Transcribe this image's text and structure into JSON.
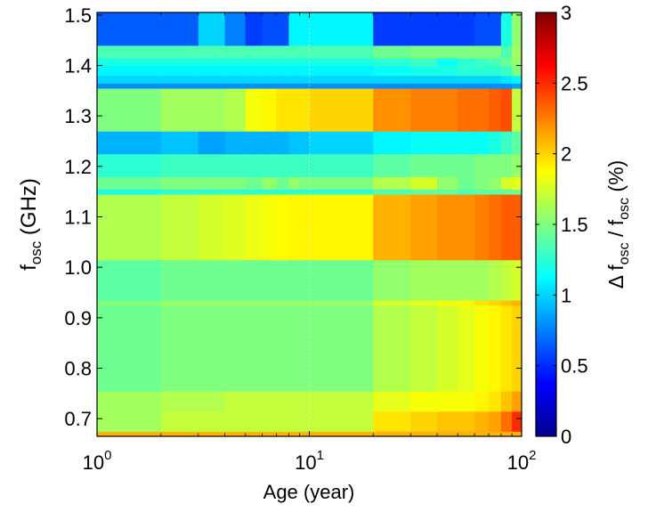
{
  "chart_data": {
    "type": "heatmap",
    "title": "",
    "xlabel": "Age (year)",
    "ylabel_main": "f",
    "ylabel_sub": "osc",
    "ylabel_unit": " (GHz)",
    "xscale": "log",
    "xlim": [
      1,
      100
    ],
    "ylim": [
      0.665,
      1.505
    ],
    "x_ticks": [
      {
        "value": 1,
        "base": "10",
        "exp": "0"
      },
      {
        "value": 10,
        "base": "10",
        "exp": "1"
      },
      {
        "value": 100,
        "base": "10",
        "exp": "2"
      }
    ],
    "y_ticks": [
      {
        "value": 0.7,
        "label": "0.7"
      },
      {
        "value": 0.8,
        "label": "0.8"
      },
      {
        "value": 0.9,
        "label": "0.9"
      },
      {
        "value": 1.0,
        "label": "1.0"
      },
      {
        "value": 1.1,
        "label": "1.1"
      },
      {
        "value": 1.2,
        "label": "1.2"
      },
      {
        "value": 1.3,
        "label": "1.3"
      },
      {
        "value": 1.4,
        "label": "1.4"
      },
      {
        "value": 1.5,
        "label": "1.5"
      }
    ],
    "colorbar": {
      "label_prefix": "Δ f",
      "label_sub1": "osc",
      "label_mid": " / f",
      "label_sub2": "osc",
      "label_unit": " (%)",
      "range": [
        0,
        3
      ],
      "colormap": "jet",
      "ticks": [
        {
          "value": 0,
          "label": "0"
        },
        {
          "value": 0.5,
          "label": "0.5"
        },
        {
          "value": 1,
          "label": "1"
        },
        {
          "value": 1.5,
          "label": "1.5"
        },
        {
          "value": 2,
          "label": "2"
        },
        {
          "value": 2.5,
          "label": "2.5"
        },
        {
          "value": 3,
          "label": "3"
        }
      ]
    },
    "x_edges": [
      1,
      2,
      3,
      4,
      5,
      6,
      7,
      8,
      9,
      10,
      20,
      30,
      40,
      50,
      60,
      70,
      80,
      90,
      100
    ],
    "rows": [
      {
        "y0": 0.665,
        "y1": 0.675,
        "values": [
          2.1,
          2.1,
          2.1,
          2.1,
          2.1,
          2.1,
          2.1,
          2.1,
          2.1,
          2.1,
          2.1,
          2.1,
          2.1,
          2.1,
          2.1,
          2.1,
          2.1,
          2.1
        ]
      },
      {
        "y0": 0.675,
        "y1": 0.715,
        "values": [
          1.6,
          1.7,
          1.7,
          1.7,
          1.7,
          1.7,
          1.7,
          1.7,
          1.7,
          1.7,
          1.95,
          2.0,
          2.05,
          2.05,
          2.1,
          2.15,
          2.3,
          2.5
        ]
      },
      {
        "y0": 0.715,
        "y1": 0.755,
        "values": [
          1.6,
          1.65,
          1.65,
          1.7,
          1.7,
          1.7,
          1.7,
          1.7,
          1.7,
          1.7,
          1.8,
          1.85,
          1.85,
          1.85,
          1.9,
          1.95,
          2.05,
          2.15
        ]
      },
      {
        "y0": 0.755,
        "y1": 0.925,
        "values": [
          1.45,
          1.5,
          1.5,
          1.5,
          1.5,
          1.5,
          1.5,
          1.5,
          1.5,
          1.5,
          1.65,
          1.7,
          1.75,
          1.8,
          1.85,
          1.9,
          1.95,
          2.0
        ]
      },
      {
        "y0": 0.925,
        "y1": 0.935,
        "values": [
          1.5,
          1.55,
          1.55,
          1.55,
          1.55,
          1.55,
          1.55,
          1.55,
          1.55,
          1.55,
          1.75,
          1.8,
          1.85,
          1.9,
          1.95,
          2.0,
          2.05,
          2.1
        ]
      },
      {
        "y0": 0.935,
        "y1": 1.015,
        "values": [
          1.4,
          1.45,
          1.45,
          1.45,
          1.45,
          1.45,
          1.45,
          1.45,
          1.45,
          1.45,
          1.55,
          1.6,
          1.6,
          1.6,
          1.6,
          1.65,
          1.7,
          1.75
        ]
      },
      {
        "y0": 1.015,
        "y1": 1.145,
        "values": [
          1.65,
          1.7,
          1.75,
          1.78,
          1.82,
          1.85,
          1.88,
          1.9,
          1.9,
          1.9,
          2.1,
          2.15,
          2.2,
          2.2,
          2.25,
          2.3,
          2.35,
          2.35
        ]
      },
      {
        "y0": 1.145,
        "y1": 1.155,
        "values": [
          1.2,
          1.25,
          1.25,
          1.25,
          1.25,
          1.25,
          1.25,
          1.25,
          1.25,
          1.25,
          1.35,
          1.4,
          1.4,
          1.35,
          1.4,
          1.4,
          1.4,
          1.45
        ]
      },
      {
        "y0": 1.155,
        "y1": 1.18,
        "values": [
          1.45,
          1.5,
          1.5,
          1.5,
          1.45,
          1.55,
          1.45,
          1.55,
          1.5,
          1.5,
          1.65,
          1.75,
          1.55,
          1.45,
          1.5,
          1.55,
          1.75,
          1.8
        ]
      },
      {
        "y0": 1.18,
        "y1": 1.225,
        "values": [
          1.25,
          1.3,
          1.3,
          1.3,
          1.3,
          1.3,
          1.3,
          1.3,
          1.3,
          1.3,
          1.4,
          1.45,
          1.45,
          1.45,
          1.5,
          1.5,
          1.5,
          1.55
        ]
      },
      {
        "y0": 1.225,
        "y1": 1.27,
        "values": [
          0.9,
          0.95,
          0.85,
          0.9,
          0.9,
          0.9,
          0.9,
          0.95,
          0.95,
          1.0,
          1.1,
          1.15,
          1.15,
          1.15,
          1.15,
          1.2,
          1.3,
          1.4
        ]
      },
      {
        "y0": 1.27,
        "y1": 1.355,
        "values": [
          1.5,
          1.6,
          1.6,
          1.65,
          1.85,
          1.9,
          1.95,
          1.95,
          1.95,
          2.0,
          2.2,
          2.25,
          2.25,
          2.3,
          2.3,
          2.35,
          2.4,
          1.7
        ]
      },
      {
        "y0": 1.355,
        "y1": 1.365,
        "values": [
          0.8,
          0.8,
          0.8,
          0.8,
          0.8,
          0.8,
          0.8,
          0.8,
          0.8,
          0.8,
          0.8,
          0.8,
          0.8,
          0.8,
          0.8,
          0.8,
          0.8,
          0.85
        ]
      },
      {
        "y0": 1.365,
        "y1": 1.38,
        "values": [
          1.0,
          1.0,
          1.0,
          1.0,
          1.0,
          1.0,
          1.0,
          1.0,
          1.0,
          1.0,
          1.0,
          1.0,
          1.0,
          1.0,
          1.0,
          1.0,
          1.05,
          1.1
        ]
      },
      {
        "y0": 1.38,
        "y1": 1.4,
        "values": [
          1.1,
          1.1,
          1.1,
          1.1,
          1.1,
          1.1,
          1.1,
          1.1,
          1.1,
          1.1,
          1.15,
          1.2,
          1.2,
          1.25,
          1.25,
          1.25,
          1.3,
          1.5
        ]
      },
      {
        "y0": 1.4,
        "y1": 1.415,
        "values": [
          1.2,
          1.2,
          1.2,
          1.2,
          1.2,
          1.2,
          1.2,
          1.2,
          1.2,
          1.2,
          1.25,
          1.3,
          1.15,
          1.25,
          1.3,
          1.35,
          1.45,
          1.55
        ]
      },
      {
        "y0": 1.415,
        "y1": 1.44,
        "values": [
          1.35,
          1.35,
          1.35,
          1.35,
          1.35,
          1.35,
          1.35,
          1.35,
          1.35,
          1.35,
          1.45,
          1.5,
          1.5,
          1.5,
          1.5,
          1.5,
          1.35,
          1.6
        ]
      },
      {
        "y0": 1.44,
        "y1": 1.505,
        "values": [
          0.65,
          0.65,
          1.0,
          0.75,
          0.55,
          0.6,
          0.6,
          1.1,
          1.1,
          1.1,
          0.55,
          0.55,
          0.55,
          0.55,
          0.6,
          0.6,
          1.2,
          1.55
        ]
      }
    ]
  }
}
